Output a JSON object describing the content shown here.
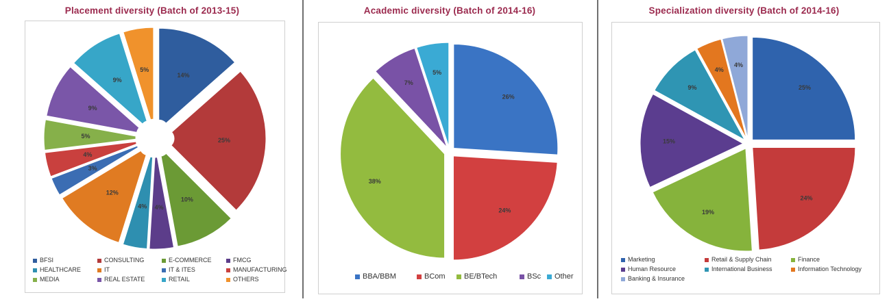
{
  "chart_data": [
    {
      "type": "pie",
      "title": "Placement diversity (Batch of 2013-15)",
      "categories": [
        "BFSI",
        "CONSULTING",
        "E-COMMERCE",
        "FMCG",
        "HEALTHCARE",
        "IT",
        "IT & ITES",
        "MANUFACTURING",
        "MEDIA",
        "REAL ESTATE",
        "RETAIL",
        "OTHERS"
      ],
      "values": [
        14,
        25,
        10,
        4,
        4,
        12,
        3,
        4,
        5,
        9,
        9,
        5
      ],
      "data_labels": [
        "14%",
        "25%",
        "10%",
        "4%",
        "4%",
        "12%",
        "3%",
        "4%",
        "5%",
        "9%",
        "9%",
        "5%"
      ],
      "colors": [
        "#2f5d9e",
        "#b33a3a",
        "#6b9a35",
        "#5c3d8a",
        "#2e8fb0",
        "#e07b22",
        "#3b6db3",
        "#c9403e",
        "#86b04a",
        "#7a56a8",
        "#37a6c8",
        "#f0922c"
      ],
      "legend": "bottom",
      "exploded": true,
      "donut_hole": true
    },
    {
      "type": "pie",
      "title": "Academic diversity (Batch of 2014-16)",
      "categories": [
        "BBA/BBM",
        "BCom",
        "BE/BTech",
        "BSc",
        "Other"
      ],
      "values": [
        26,
        24,
        38,
        7,
        5
      ],
      "data_labels": [
        "26%",
        "24%",
        "38%",
        "7%",
        "5%"
      ],
      "colors": [
        "#3a74c4",
        "#d24040",
        "#93bb3f",
        "#7952a6",
        "#3aaad4"
      ],
      "legend": "bottom",
      "exploded": true
    },
    {
      "type": "pie",
      "title": "Specialization diversity (Batch of 2014-16)",
      "categories": [
        "Marketing",
        "Retail & Supply Chain",
        "Finance",
        "Human Resource",
        "International Business",
        "Information Technology",
        "Banking & Insurance"
      ],
      "values": [
        25,
        24,
        19,
        15,
        9,
        4,
        4
      ],
      "data_labels": [
        "25%",
        "24%",
        "19%",
        "15%",
        "9%",
        "4%",
        "4%"
      ],
      "colors": [
        "#2f63ad",
        "#c43b3b",
        "#86b33c",
        "#5b3d8f",
        "#2f95b3",
        "#e3771f",
        "#8fa8d8"
      ],
      "legend": "bottom",
      "exploded": true
    }
  ]
}
